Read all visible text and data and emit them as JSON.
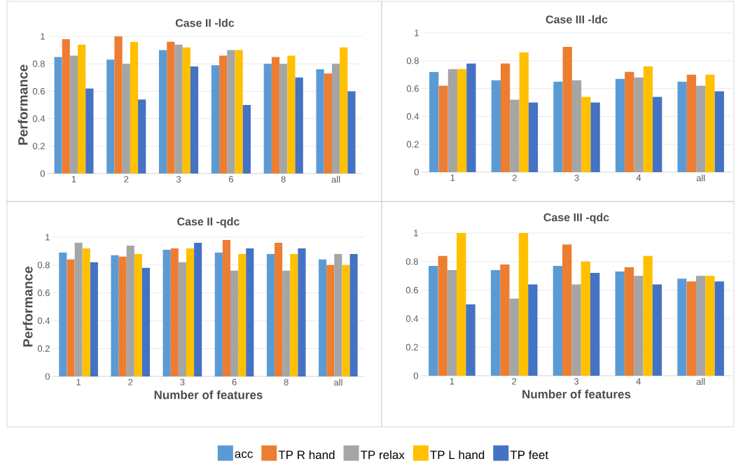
{
  "chart_data": [
    {
      "type": "bar",
      "title": "Case II -ldc",
      "ylabel": "Performance",
      "categories": [
        "1",
        "2",
        "3",
        "6",
        "8",
        "all"
      ],
      "ylim": [
        0,
        1
      ],
      "yticks": [
        0,
        0.2,
        0.4,
        0.6,
        0.8,
        1
      ],
      "grid": "y",
      "series": [
        {
          "color": "#5b9bd5",
          "values": [
            0.85,
            0.83,
            0.9,
            0.79,
            0.8,
            0.76
          ]
        },
        {
          "color": "#ed7d31",
          "values": [
            0.98,
            1.0,
            0.96,
            0.86,
            0.85,
            0.73
          ]
        },
        {
          "color": "#a5a5a5",
          "values": [
            0.86,
            0.8,
            0.94,
            0.9,
            0.8,
            0.8
          ]
        },
        {
          "color": "#ffc000",
          "values": [
            0.94,
            0.96,
            0.92,
            0.9,
            0.86,
            0.92
          ]
        },
        {
          "color": "#4472c4",
          "values": [
            0.62,
            0.54,
            0.78,
            0.5,
            0.7,
            0.6
          ]
        }
      ]
    },
    {
      "type": "bar",
      "title": "Case III -ldc",
      "categories": [
        "1",
        "2",
        "3",
        "4",
        "all"
      ],
      "ylim": [
        0,
        1
      ],
      "yticks": [
        0,
        0.2,
        0.4,
        0.6,
        0.8,
        1
      ],
      "grid": "y",
      "series": [
        {
          "color": "#5b9bd5",
          "values": [
            0.72,
            0.66,
            0.65,
            0.67,
            0.65
          ]
        },
        {
          "color": "#ed7d31",
          "values": [
            0.62,
            0.78,
            0.9,
            0.72,
            0.7
          ]
        },
        {
          "color": "#a5a5a5",
          "values": [
            0.74,
            0.52,
            0.66,
            0.68,
            0.62
          ]
        },
        {
          "color": "#ffc000",
          "values": [
            0.74,
            0.86,
            0.54,
            0.76,
            0.7
          ]
        },
        {
          "color": "#4472c4",
          "values": [
            0.78,
            0.5,
            0.5,
            0.54,
            0.58
          ]
        }
      ]
    },
    {
      "type": "bar",
      "title": "Case II  -qdc",
      "xlabel": "Number of features",
      "ylabel": "Performance",
      "categories": [
        "1",
        "2",
        "3",
        "6",
        "8",
        "all"
      ],
      "ylim": [
        0,
        1
      ],
      "yticks": [
        0,
        0.2,
        0.4,
        0.6,
        0.8,
        1
      ],
      "grid": "y",
      "series": [
        {
          "color": "#5b9bd5",
          "values": [
            0.89,
            0.87,
            0.91,
            0.89,
            0.88,
            0.84
          ]
        },
        {
          "color": "#ed7d31",
          "values": [
            0.84,
            0.86,
            0.92,
            0.98,
            0.96,
            0.8
          ]
        },
        {
          "color": "#a5a5a5",
          "values": [
            0.96,
            0.94,
            0.82,
            0.76,
            0.76,
            0.88
          ]
        },
        {
          "color": "#ffc000",
          "values": [
            0.92,
            0.88,
            0.92,
            0.88,
            0.88,
            0.8
          ]
        },
        {
          "color": "#4472c4",
          "values": [
            0.82,
            0.78,
            0.96,
            0.92,
            0.92,
            0.88
          ]
        }
      ]
    },
    {
      "type": "bar",
      "title": "Case III -qdc",
      "xlabel": "Number of features",
      "categories": [
        "1",
        "2",
        "3",
        "4",
        "all"
      ],
      "ylim": [
        0,
        1
      ],
      "yticks": [
        0,
        0.2,
        0.4,
        0.6,
        0.8,
        1
      ],
      "grid": "y",
      "legend": "bottom",
      "series": [
        {
          "name": "acc",
          "color": "#5b9bd5",
          "values": [
            0.77,
            0.74,
            0.77,
            0.73,
            0.68
          ]
        },
        {
          "name": "TP R hand",
          "color": "#ed7d31",
          "values": [
            0.84,
            0.78,
            0.92,
            0.76,
            0.66
          ]
        },
        {
          "name": "TP relax",
          "color": "#a5a5a5",
          "values": [
            0.74,
            0.54,
            0.64,
            0.7,
            0.7
          ]
        },
        {
          "name": "TP L hand",
          "color": "#ffc000",
          "values": [
            1.0,
            1.0,
            0.8,
            0.84,
            0.7
          ]
        },
        {
          "name": "TP feet",
          "color": "#4472c4",
          "values": [
            0.5,
            0.64,
            0.72,
            0.64,
            0.66
          ]
        }
      ]
    }
  ]
}
